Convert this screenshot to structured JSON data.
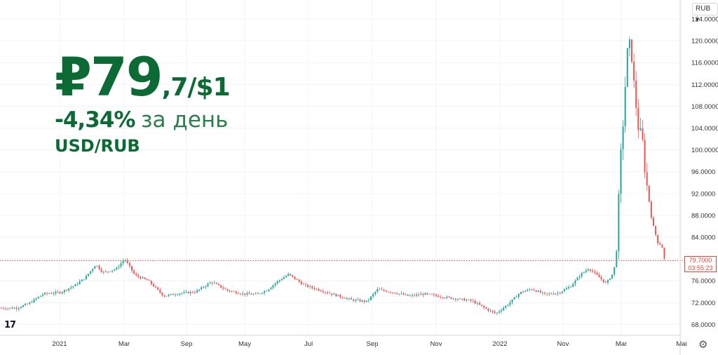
{
  "header": {
    "price_big": "₽79",
    "price_small": ",7/$1",
    "change": "-4,34%",
    "change_label": "за день",
    "pair": "USD/RUB"
  },
  "currency_select": "RUB ▾",
  "last_price": {
    "value": "79.7000",
    "countdown": "03:55:23"
  },
  "logo": "17",
  "settings_icon": "gear-icon",
  "colors": {
    "up": "#26a69a",
    "down": "#ef5350",
    "accent": "#0c6b34",
    "price_line": "#e0453a"
  },
  "chart_data": {
    "type": "candlestick",
    "title": "",
    "xlabel": "",
    "ylabel": "",
    "ylim": [
      66.0,
      124.5
    ],
    "yticks": [
      "68.0000",
      "72.0000",
      "76.0000",
      "80.0000",
      "84.0000",
      "88.0000",
      "92.0000",
      "96.0000",
      "100.0000",
      "104.0000",
      "108.0000",
      "112.0000",
      "116.0000",
      "120.0000",
      "124.0000"
    ],
    "xticks": [
      "Sep",
      "Nov",
      "2021",
      "Mar",
      "May",
      "Jul",
      "Sep",
      "Nov",
      "2022",
      "Mar",
      "Mai"
    ],
    "grid": true,
    "last_value": 79.7,
    "price_path": [
      [
        "2020-07-20",
        71.0
      ],
      [
        "2020-08-01",
        71.8
      ],
      [
        "2020-08-15",
        73.6
      ],
      [
        "2020-09-01",
        73.9
      ],
      [
        "2020-09-15",
        75.2
      ],
      [
        "2020-09-25",
        76.6
      ],
      [
        "2020-10-05",
        79.0
      ],
      [
        "2020-10-12",
        77.5
      ],
      [
        "2020-10-25",
        78.2
      ],
      [
        "2020-11-02",
        80.0
      ],
      [
        "2020-11-12",
        77.0
      ],
      [
        "2020-11-25",
        76.0
      ],
      [
        "2020-12-10",
        73.2
      ],
      [
        "2020-12-25",
        73.7
      ],
      [
        "2021-01-10",
        74.0
      ],
      [
        "2021-01-25",
        75.8
      ],
      [
        "2021-02-10",
        74.2
      ],
      [
        "2021-02-25",
        73.6
      ],
      [
        "2021-03-10",
        73.5
      ],
      [
        "2021-03-20",
        74.3
      ],
      [
        "2021-03-31",
        76.0
      ],
      [
        "2021-04-10",
        77.2
      ],
      [
        "2021-04-25",
        75.2
      ],
      [
        "2021-05-10",
        74.3
      ],
      [
        "2021-05-25",
        73.4
      ],
      [
        "2021-06-10",
        72.5
      ],
      [
        "2021-06-25",
        72.2
      ],
      [
        "2021-07-05",
        74.4
      ],
      [
        "2021-07-20",
        73.9
      ],
      [
        "2021-08-05",
        73.2
      ],
      [
        "2021-08-20",
        73.6
      ],
      [
        "2021-09-05",
        73.1
      ],
      [
        "2021-09-20",
        72.7
      ],
      [
        "2021-10-05",
        72.3
      ],
      [
        "2021-10-20",
        70.7
      ],
      [
        "2021-10-28",
        70.0
      ],
      [
        "2021-11-10",
        71.9
      ],
      [
        "2021-11-20",
        73.8
      ],
      [
        "2021-12-01",
        74.5
      ],
      [
        "2021-12-15",
        73.5
      ],
      [
        "2021-12-28",
        73.8
      ],
      [
        "2022-01-10",
        75.0
      ],
      [
        "2022-01-20",
        77.2
      ],
      [
        "2022-01-28",
        78.3
      ],
      [
        "2022-02-05",
        77.0
      ],
      [
        "2022-02-14",
        75.5
      ],
      [
        "2022-02-21",
        77.4
      ],
      [
        "2022-02-24",
        80.0
      ],
      [
        "2022-02-28",
        98.0
      ],
      [
        "2022-03-03",
        105.0
      ],
      [
        "2022-03-07",
        118.0
      ],
      [
        "2022-03-10",
        120.0
      ],
      [
        "2022-03-15",
        110.0
      ],
      [
        "2022-03-18",
        104.0
      ],
      [
        "2022-03-22",
        103.0
      ],
      [
        "2022-03-25",
        96.0
      ],
      [
        "2022-04-01",
        87.0
      ],
      [
        "2022-04-07",
        83.0
      ],
      [
        "2022-04-11",
        82.5
      ],
      [
        "2022-04-14",
        79.7
      ]
    ]
  }
}
